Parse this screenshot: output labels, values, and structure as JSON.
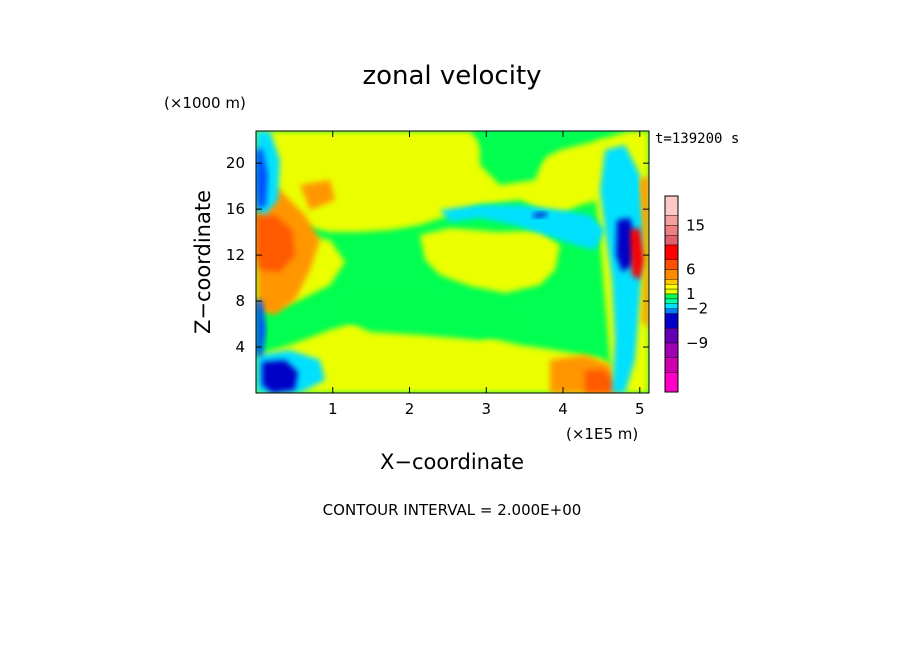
{
  "chart_data": {
    "type": "heatmap",
    "title": "zonal velocity",
    "xlabel": "X−coordinate",
    "ylabel": "Z−coordinate",
    "x_unit": "(×1E5 m)",
    "y_unit": "(×1000 m)",
    "time_label": "t=139200 s",
    "footer": "CONTOUR INTERVAL = 2.000E+00",
    "contour_interval": 2.0,
    "xlim": [
      0,
      5.12
    ],
    "ylim": [
      0,
      22.8
    ],
    "x_ticks": [
      "1",
      "2",
      "3",
      "4",
      "5"
    ],
    "y_ticks": [
      "4",
      "8",
      "12",
      "16",
      "20"
    ],
    "x_tick_values": [
      1,
      2,
      3,
      4,
      5
    ],
    "y_tick_values": [
      4,
      8,
      12,
      16,
      20
    ],
    "colorbar": {
      "tick_labels": [
        "15",
        "6",
        "1",
        "−2",
        "−9"
      ],
      "tick_values": [
        15,
        6,
        1,
        -2,
        -9
      ],
      "levels": [
        {
          "range": [
            17,
            21
          ],
          "color": "#ffc8c8"
        },
        {
          "range": [
            15,
            17
          ],
          "color": "#f5a0a0"
        },
        {
          "range": [
            13,
            15
          ],
          "color": "#ee8080"
        },
        {
          "range": [
            11,
            13
          ],
          "color": "#e06070"
        },
        {
          "range": [
            8,
            11
          ],
          "color": "#ff0000"
        },
        {
          "range": [
            6,
            8
          ],
          "color": "#ff5000"
        },
        {
          "range": [
            4,
            6
          ],
          "color": "#ff8c00"
        },
        {
          "range": [
            3,
            4
          ],
          "color": "#ffc800"
        },
        {
          "range": [
            2,
            3
          ],
          "color": "#ffff00"
        },
        {
          "range": [
            1,
            2
          ],
          "color": "#e8ff00"
        },
        {
          "range": [
            0,
            1
          ],
          "color": "#00ff50"
        },
        {
          "range": [
            -1,
            0
          ],
          "color": "#00ffaa"
        },
        {
          "range": [
            -2,
            -1
          ],
          "color": "#00e0ff"
        },
        {
          "range": [
            -3,
            -2
          ],
          "color": "#0080ff"
        },
        {
          "range": [
            -6,
            -3
          ],
          "color": "#0000c8"
        },
        {
          "range": [
            -9,
            -6
          ],
          "color": "#6400b4"
        },
        {
          "range": [
            -12,
            -9
          ],
          "color": "#a000b4"
        },
        {
          "range": [
            -15,
            -12
          ],
          "color": "#d000b0"
        },
        {
          "range": [
            -19,
            -15
          ],
          "color": "#ff00c8"
        }
      ]
    },
    "field_colors": {
      "green": "#00ff50",
      "yellow": "#ebff00",
      "orange": "#ff9600",
      "red_orange": "#ff5a00",
      "cyan": "#00e0ff",
      "blue": "#0050ff",
      "navy": "#0000c8",
      "red": "#ff0000"
    },
    "features": [
      {
        "name": "background",
        "value": 0.5,
        "color": "green"
      },
      {
        "name": "upper band",
        "value": 1.5,
        "color": "yellow"
      },
      {
        "name": "mid-left patch",
        "value": 1.5,
        "color": "yellow"
      },
      {
        "name": "bottom band",
        "value": 1.5,
        "color": "yellow"
      },
      {
        "name": "left jet",
        "value": 6,
        "color": "red_orange"
      },
      {
        "name": "left lower core",
        "value": -5,
        "color": "navy"
      },
      {
        "name": "right lower core",
        "value": 5,
        "color": "red_orange"
      },
      {
        "name": "right boundary core",
        "value": -5,
        "color": "navy"
      },
      {
        "name": "upper-right streak",
        "value": -1.5,
        "color": "cyan"
      }
    ]
  }
}
